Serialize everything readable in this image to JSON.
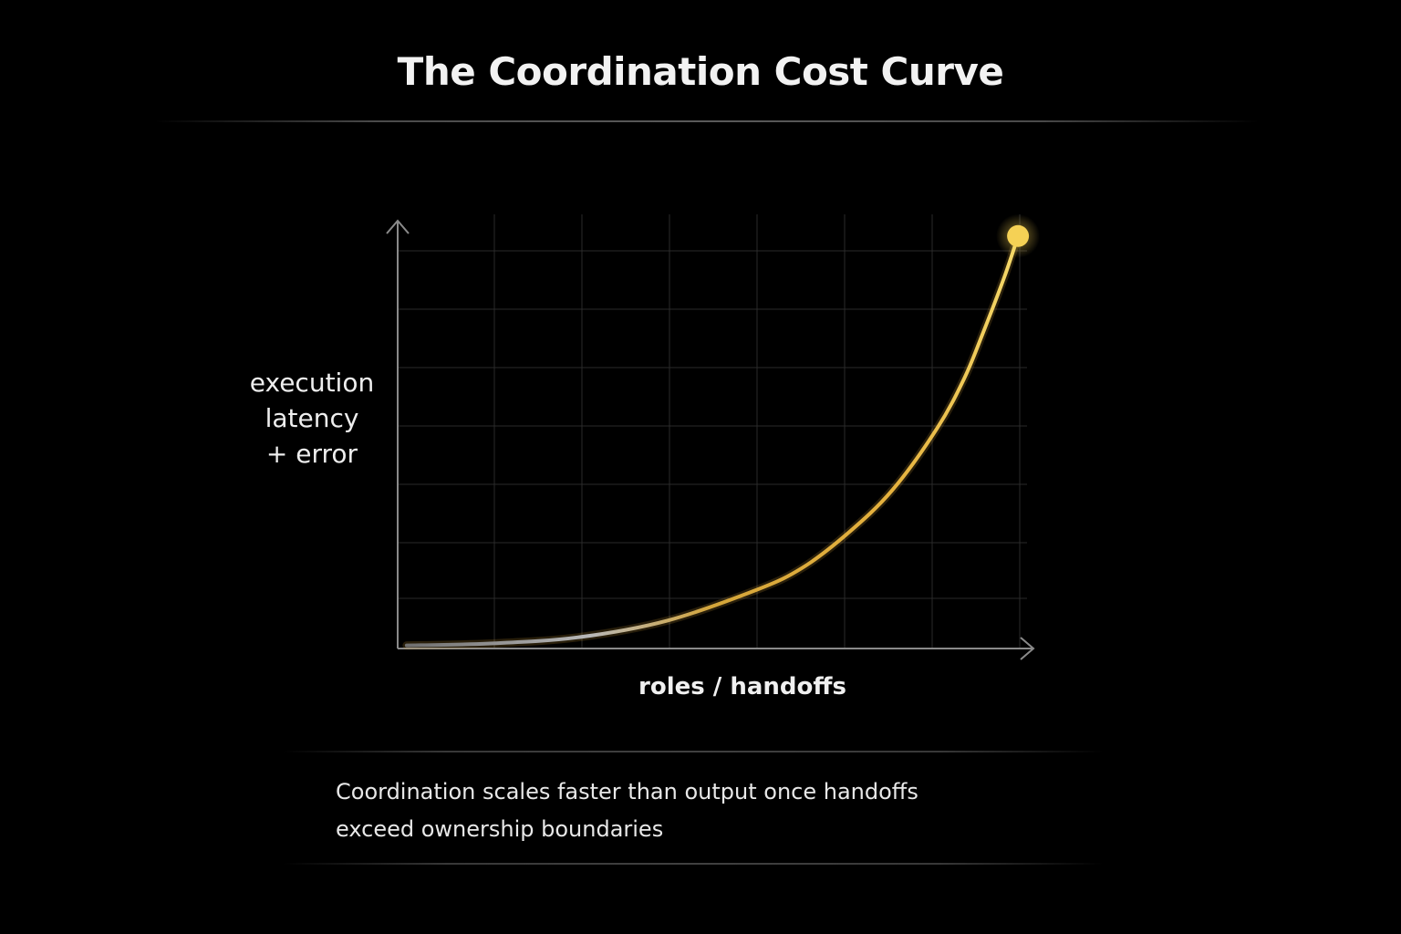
{
  "title": "The Coordination Cost Curve",
  "caption": {
    "line1": "Coordination scales faster than output once handoffs",
    "line2": "exceed ownership boundaries"
  },
  "chart_data": {
    "type": "line",
    "title": "The Coordination Cost Curve",
    "xlabel": "roles / handoffs",
    "ylabel_lines": [
      "execution",
      "latency",
      "+ error"
    ],
    "ylabel": "execution latency + error",
    "x_ticks_labeled": false,
    "y_ticks_labeled": false,
    "grid": true,
    "xlim": [
      0,
      7
    ],
    "ylim": [
      0,
      7
    ],
    "series": [
      {
        "x": [
          0.1,
          1.0,
          2.0,
          3.0,
          4.0,
          4.5,
          5.0,
          5.5,
          6.0,
          6.3,
          6.5,
          6.75,
          6.9
        ],
        "y": [
          0.05,
          0.08,
          0.18,
          0.45,
          0.95,
          1.3,
          1.85,
          2.55,
          3.55,
          4.35,
          5.05,
          6.0,
          6.65
        ],
        "color_start": "#808080",
        "color_end": "#f2d050",
        "endpoint_marker": true
      }
    ],
    "colors": {
      "background": "#000000",
      "axis": "#8a8a8a",
      "grid": "#2a2a2a",
      "curve_mid": "#d9a530",
      "marker": "#f5d155"
    }
  }
}
